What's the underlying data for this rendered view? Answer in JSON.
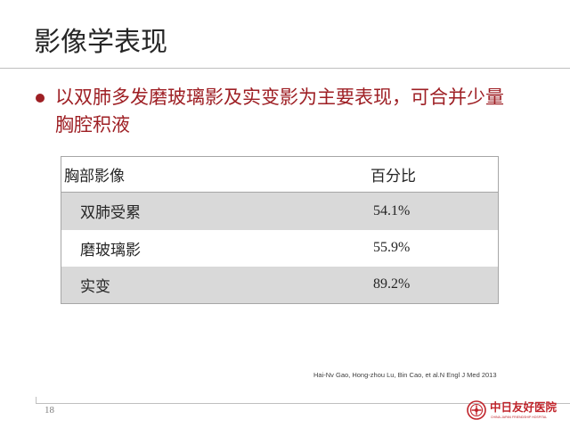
{
  "slide": {
    "title": "影像学表现",
    "bullet": {
      "icon": "bullet-dot-icon",
      "lines": [
        "以双肺多发磨玻璃影及实变影为主要表现，可合并少量",
        "胸腔积液"
      ]
    },
    "table": {
      "headers": [
        "胸部影像",
        "百分比"
      ],
      "rows": [
        {
          "label": "双肺受累",
          "value": "54.1%"
        },
        {
          "label": "磨玻璃影",
          "value": "55.9%"
        },
        {
          "label": "实变",
          "value": "89.2%"
        }
      ]
    },
    "citation": "Hai-Nv Gao, Hong-zhou Lu, Bin Cao, et al.N Engl J Med 2013",
    "page_number": "18",
    "logo": {
      "icon": "hospital-emblem-icon",
      "name": "中日友好医院",
      "english_name": "CHINA-JAPAN FRIENDSHIP HOSPITAL"
    }
  },
  "colors": {
    "text": "#262626",
    "accent": "#9E1F24",
    "row_shade": "#D9D9D9",
    "table_border": "#A6A6A6",
    "rule": "#BFBFBF",
    "logo_red": "#C0242B"
  }
}
